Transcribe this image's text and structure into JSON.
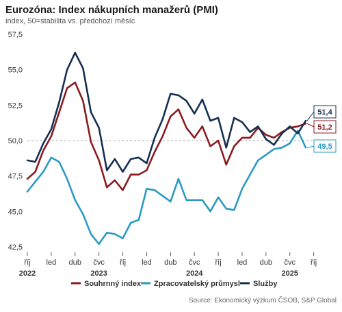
{
  "title": "Eurozóna: Index nákupních manažerů (PMI)",
  "subtitle": "index, 50=stabilita vs. předchozí měsíc",
  "source": "Source: Ekonomický výzkum ČSOB, S&P Global",
  "chart_data": {
    "type": "line",
    "y_ticks": [
      "57,5",
      "55,0",
      "52,5",
      "50,0",
      "47,5",
      "45,0",
      "42,5"
    ],
    "ylim": [
      42.5,
      57.5
    ],
    "reference_line": 50,
    "x_tick_labels": [
      "říj",
      "led",
      "dub",
      "čvc",
      "říj",
      "led",
      "dub",
      "čvc",
      "říj",
      "led",
      "dub",
      "čvc",
      "říj"
    ],
    "year_labels": [
      "2022",
      "2023",
      "2024",
      "2025"
    ],
    "months": [
      "2022-10",
      "2022-11",
      "2022-12",
      "2023-01",
      "2023-02",
      "2023-03",
      "2023-04",
      "2023-05",
      "2023-06",
      "2023-07",
      "2023-08",
      "2023-09",
      "2023-10",
      "2023-11",
      "2023-12",
      "2024-01",
      "2024-02",
      "2024-03",
      "2024-04",
      "2024-05",
      "2024-06",
      "2024-07",
      "2024-08",
      "2024-09",
      "2024-10",
      "2024-11",
      "2024-12",
      "2025-01",
      "2025-02",
      "2025-03",
      "2025-04",
      "2025-05",
      "2025-06",
      "2025-07",
      "2025-08",
      "2025-09"
    ],
    "series": [
      {
        "name": "Souhrnný index",
        "color": "#8b1a1f",
        "end_label": "51,2",
        "values": [
          47.3,
          47.8,
          49.3,
          50.3,
          52.0,
          53.7,
          54.1,
          52.8,
          49.9,
          48.6,
          46.7,
          47.2,
          46.5,
          47.6,
          47.6,
          47.9,
          49.2,
          50.3,
          51.7,
          52.2,
          50.9,
          50.2,
          51.0,
          49.6,
          50.0,
          48.3,
          49.6,
          50.2,
          50.2,
          50.9,
          50.4,
          50.2,
          50.6,
          50.9,
          51.0,
          51.2
        ]
      },
      {
        "name": "Zpracovatelský průmysl",
        "color": "#2a9ac1",
        "end_label": "49,5",
        "values": [
          46.4,
          47.1,
          47.8,
          48.8,
          48.5,
          47.3,
          45.8,
          44.8,
          43.4,
          42.7,
          43.5,
          43.4,
          43.1,
          44.2,
          44.4,
          46.6,
          46.5,
          46.1,
          45.7,
          47.3,
          45.8,
          45.8,
          45.8,
          45.0,
          46.0,
          45.2,
          45.1,
          46.6,
          47.6,
          48.6,
          49.0,
          49.4,
          49.5,
          49.8,
          50.7,
          49.5
        ]
      },
      {
        "name": "Služby",
        "color": "#152f52",
        "end_label": "51,4",
        "values": [
          48.6,
          48.5,
          49.8,
          50.8,
          52.7,
          55.0,
          56.2,
          55.1,
          52.0,
          50.9,
          47.9,
          48.7,
          47.8,
          48.7,
          48.8,
          48.4,
          50.2,
          51.5,
          53.3,
          53.2,
          52.8,
          51.9,
          52.9,
          51.4,
          51.6,
          49.5,
          51.6,
          51.3,
          50.6,
          51.0,
          50.1,
          49.7,
          50.5,
          51.0,
          50.5,
          51.4
        ]
      }
    ]
  }
}
